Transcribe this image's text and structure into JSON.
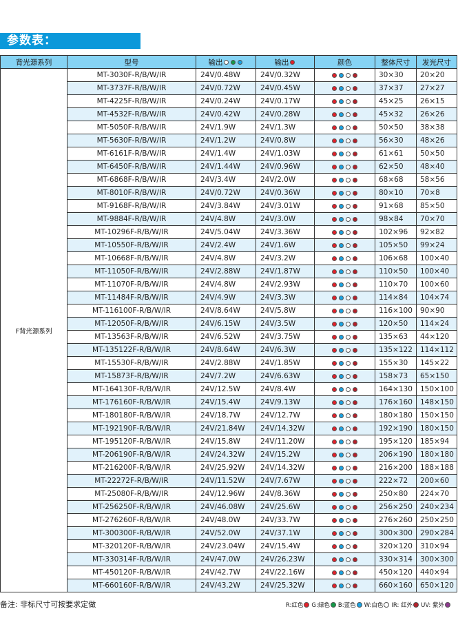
{
  "title": "参数表：",
  "colors": {
    "red": "#e3202a",
    "blue": "#1aa3e3",
    "white": "#ffffff",
    "ir": "#b4212b",
    "green": "#139a48",
    "uv": "#8e3a8e",
    "header_bg": "#86d3f4",
    "alt_row": "#e1f2fb",
    "title_bg": "#0b98da"
  },
  "table": {
    "headers": {
      "series": "背光源系列",
      "model": "型号",
      "out1": "输出",
      "out2": "输出",
      "color": "颜色",
      "size": "整体尺寸",
      "lit": "发光尺寸"
    },
    "out1_dots": [
      "white",
      "green",
      "blue"
    ],
    "out2_dots": [
      "red"
    ],
    "row_dots": [
      "red",
      "blue",
      "white",
      "ir"
    ],
    "series_name": "F背光源系列",
    "rows": [
      [
        "MT-3030F-R/B/W/IR",
        "24V/0.48W",
        "24V/0.32W",
        "30×30",
        "20×20"
      ],
      [
        "MT-3737F-R/B/W/IR",
        "24V/0.72W",
        "24V/0.45W",
        "37×37",
        "27×27"
      ],
      [
        "MT-4225F-R/B/W/IR",
        "24V/0.24W",
        "24V/0.17W",
        "45×25",
        "26×15"
      ],
      [
        "MT-4532F-R/B/W/IR",
        "24V/0.42W",
        "24V/0.28W",
        "45×32",
        "26×26"
      ],
      [
        "MT-5050F-R/B/W/IR",
        "24V/1.9W",
        "24V/1.3W",
        "50×50",
        "38×38"
      ],
      [
        "MT-5630F-R/B/W/IR",
        "24V/1.2W",
        "24V/0.8W",
        "56×30",
        "48×26"
      ],
      [
        "MT-6161F-R/B/W/IR",
        "24V/1.4W",
        "24V/1.03W",
        "61×61",
        "50×50"
      ],
      [
        "MT-6450F-R/B/W/IR",
        "24V/1.44W",
        "24V/0.96W",
        "62×50",
        "48×40"
      ],
      [
        "MT-6868F-R/B/W/IR",
        "24V/3.4W",
        "24V/2.0W",
        "68×68",
        "58×56"
      ],
      [
        "MT-8010F-R/B/W/IR",
        "24V/0.72W",
        "24V/0.36W",
        "80×10",
        "70×8"
      ],
      [
        "MT-9168F-R/B/W/IR",
        "24V/3.84W",
        "24V/3.01W",
        "91×68",
        "85×50"
      ],
      [
        "MT-9884F-R/B/W/IR",
        "24V/4.8W",
        "24V/3.0W",
        "98×84",
        "70×70"
      ],
      [
        "MT-10296F-R/B/W/IR",
        "24V/5.04W",
        "24V/3.36W",
        "102×96",
        "92×82"
      ],
      [
        "MT-10550F-R/B/W/IR",
        "24V/2.4W",
        "24V/1.6W",
        "105×50",
        "99×24"
      ],
      [
        "MT-10668F-R/B/W/IR",
        "24V/4.8W",
        "24V/3.2W",
        "106×68",
        "100×40"
      ],
      [
        "MT-11050F-R/B/W/IR",
        "24V/2.88W",
        "24V/1.87W",
        "110×50",
        "100×40"
      ],
      [
        "MT-11070F-R/B/W/IR",
        "24V/4.8W",
        "24V/2.93W",
        "110×70",
        "100×60"
      ],
      [
        "MT-11484F-R/B/W/IR",
        "24V/4.9W",
        "24V/3.3W",
        "114×84",
        "104×74"
      ],
      [
        "MT-116100F-R/B/W/IR",
        "24V/8.64W",
        "24V/5.8W",
        "116×100",
        "90×90"
      ],
      [
        "MT-12050F-R/B/W/IR",
        "24V/6.15W",
        "24V/3.5W",
        "120×50",
        "114×24"
      ],
      [
        "MT-13563F-R/B/W/IR",
        "24V/6.52W",
        "24V/3.75W",
        "135×63",
        "44×120"
      ],
      [
        "MT-135122F-R/B/W/IR",
        "24V/8.64W",
        "24V/6.3W",
        "135×122",
        "114×112"
      ],
      [
        "MT-15530F-R/B/W/IR",
        "24V/2.88W",
        "24V/1.85W",
        "155×30",
        "145×22"
      ],
      [
        "MT-15873F-R/B/W/IR",
        "24V/7.2W",
        "24V/6.63W",
        "158×73",
        "65×150"
      ],
      [
        "MT-164130F-R/B/W/IR",
        "24V/12.5W",
        "24V/8.4W",
        "164×130",
        "150×100"
      ],
      [
        "MT-176160F-R/B/W/IR",
        "24V/15.4W",
        "24V/9.13W",
        "176×160",
        "148×150"
      ],
      [
        "MT-180180F-R/B/W/IR",
        "24V/18.7W",
        "24V/12.7W",
        "180×180",
        "150×150"
      ],
      [
        "MT-192190F-R/B/W/IR",
        "24V/21.84W",
        "24V/14.32W",
        "192×190",
        "180×150"
      ],
      [
        "MT-195120F-R/B/W/IR",
        "24V/15.8W",
        "24V/11.20W",
        "195×120",
        "185×94"
      ],
      [
        "MT-206190F-R/B/W/IR",
        "24V/24.32W",
        "24V/15.2W",
        "206×190",
        "180×180"
      ],
      [
        "MT-216200F-R/B/W/IR",
        "24V/25.92W",
        "24V/14.32W",
        "216×200",
        "188×188"
      ],
      [
        "MT-22272F-R/B/W/IR",
        "24V/11.52W",
        "24V/7.67W",
        "222×72",
        "200×60"
      ],
      [
        "MT-25080F-R/B/W/IR",
        "24V/12.96W",
        "24V/8.36W",
        "250×80",
        "224×70"
      ],
      [
        "MT-256250F-R/B/W/IR",
        "24V/46.08W",
        "24V/25.6W",
        "256×250",
        "240×234"
      ],
      [
        "MT-276260F-R/B/W/IR",
        "24V/48.0W",
        "24V/33.7W",
        "276×260",
        "250×250"
      ],
      [
        "MT-300300F-R/B/W/IR",
        "24V/52.0W",
        "24V/37.1W",
        "300×300",
        "290×284"
      ],
      [
        "MT-320120F-R/B/W/IR",
        "24V/23.04W",
        "24V/15.4W",
        "320×120",
        "310×94"
      ],
      [
        "MT-330314F-R/B/W/IR",
        "24V/47.0W",
        "24V/26.23W",
        "330×314",
        "300×300"
      ],
      [
        "MT-450120F-R/B/W/IR",
        "24V/42.7W",
        "24V/22.16W",
        "450×120",
        "440×94"
      ],
      [
        "MT-660160F-R/B/W/IR",
        "24V/43.2W",
        "24V/25.32W",
        "660×160",
        "650×120"
      ]
    ]
  },
  "footer": {
    "note": "备注: 非标尺寸可按要求定做",
    "legend": [
      {
        "label": "R:红色",
        "color": "red"
      },
      {
        "label": "G:绿色",
        "color": "green"
      },
      {
        "label": "B:蓝色",
        "color": "blue"
      },
      {
        "label": "W:白色",
        "color": "white"
      },
      {
        "label": "IR: 红外",
        "color": "ir"
      },
      {
        "label": "UV: 紫外",
        "color": "uv"
      }
    ]
  }
}
